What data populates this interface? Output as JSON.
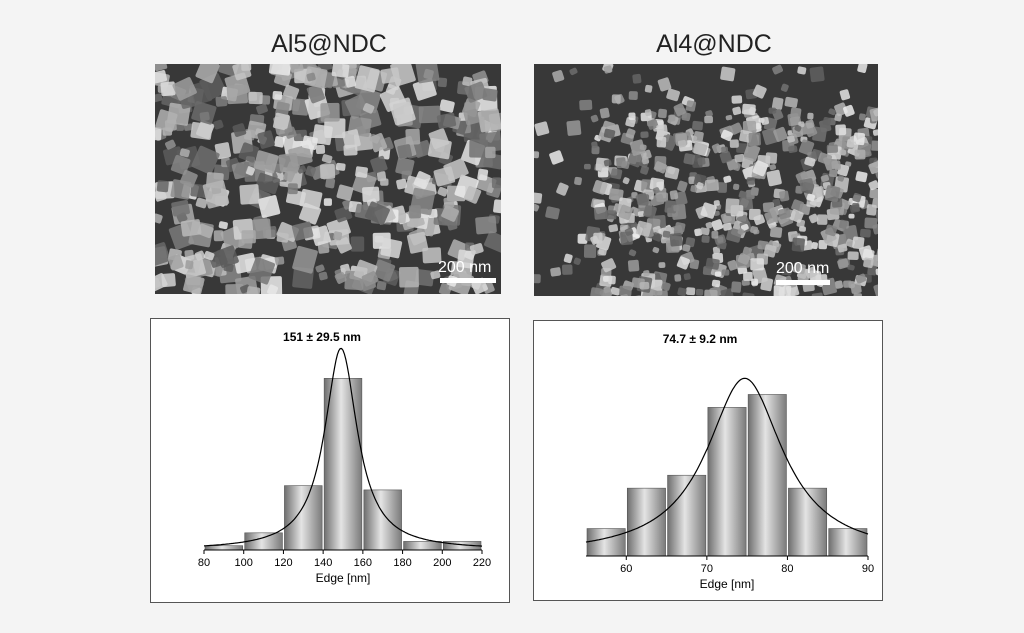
{
  "panels": [
    {
      "title": "Al5@NDC",
      "scalebar": "200 nm"
    },
    {
      "title": "Al4@NDC",
      "scalebar": "200 nm"
    }
  ],
  "chart_data": [
    {
      "type": "bar",
      "title": "151 ± 29.5 nm",
      "xlabel": "Edge [nm]",
      "ylabel": "",
      "xlim": [
        80,
        220
      ],
      "xticks": [
        80,
        100,
        120,
        140,
        160,
        180,
        200,
        220
      ],
      "bins": [
        {
          "x0": 80,
          "x1": 100,
          "value": 1
        },
        {
          "x0": 100,
          "x1": 120,
          "value": 4
        },
        {
          "x0": 120,
          "x1": 140,
          "value": 15
        },
        {
          "x0": 140,
          "x1": 160,
          "value": 40
        },
        {
          "x0": 160,
          "x1": 180,
          "value": 14
        },
        {
          "x0": 180,
          "x1": 200,
          "value": 2
        },
        {
          "x0": 200,
          "x1": 220,
          "value": 2
        }
      ],
      "ylim": [
        0,
        48
      ],
      "fit": {
        "type": "lorentzian",
        "center": 149,
        "width": 20,
        "peak": 47,
        "baseline": 0
      }
    },
    {
      "type": "bar",
      "title": "74.7 ± 9.2 nm",
      "xlabel": "Edge [nm]",
      "ylabel": "",
      "xlim": [
        55,
        90
      ],
      "xticks": [
        60,
        70,
        80,
        90
      ],
      "bins": [
        {
          "x0": 55,
          "x1": 60,
          "value": 17
        },
        {
          "x0": 60,
          "x1": 65,
          "value": 42
        },
        {
          "x0": 65,
          "x1": 70,
          "value": 50
        },
        {
          "x0": 70,
          "x1": 75,
          "value": 92
        },
        {
          "x0": 75,
          "x1": 80,
          "value": 100
        },
        {
          "x0": 80,
          "x1": 85,
          "value": 42
        },
        {
          "x0": 85,
          "x1": 90,
          "value": 17
        }
      ],
      "ylim": [
        0,
        130
      ],
      "fit": {
        "type": "lorentzian",
        "center": 74.7,
        "width": 11.5,
        "peak": 110,
        "baseline": 0
      }
    }
  ]
}
